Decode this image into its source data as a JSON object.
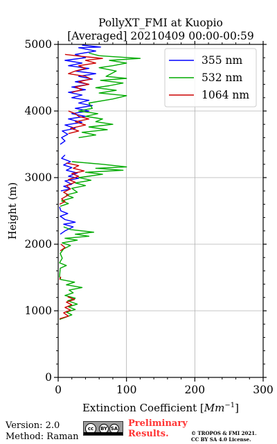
{
  "chart_data": {
    "type": "line",
    "title_line1": "PollyXT_FMI at Kuopio",
    "title_line2": "[Averaged] 20210409 00:00-00:59",
    "xlabel_text": "Extinction Coefficient [",
    "xlabel_unit": "Mm",
    "xlabel_exp": "−1",
    "xlabel_close": "]",
    "ylabel": "Height (m)",
    "xlim": [
      0,
      300
    ],
    "ylim": [
      0,
      5000
    ],
    "x_ticks": [
      "0",
      "100",
      "200",
      "300"
    ],
    "y_ticks": [
      "0",
      "1000",
      "2000",
      "3000",
      "4000",
      "5000"
    ],
    "grid": true,
    "legend_position": "top-right",
    "series": [
      {
        "name": "355 nm",
        "color": "#0000ff",
        "points": [
          [
            3,
            2150
          ],
          [
            10,
            2200
          ],
          [
            22,
            2260
          ],
          [
            8,
            2300
          ],
          [
            25,
            2330
          ],
          [
            10,
            2370
          ],
          [
            3,
            2420
          ],
          [
            14,
            2460
          ],
          [
            4,
            2500
          ],
          [
            2,
            2560
          ],
          [
            4,
            2800
          ],
          [
            18,
            2830
          ],
          [
            8,
            2870
          ],
          [
            20,
            2900
          ],
          [
            10,
            2950
          ],
          [
            30,
            2990
          ],
          [
            15,
            3020
          ],
          [
            28,
            3070
          ],
          [
            12,
            3110
          ],
          [
            20,
            3150
          ],
          [
            8,
            3190
          ],
          [
            18,
            3240
          ],
          [
            5,
            3290
          ],
          [
            10,
            3340
          ],
          [
            3,
            3500
          ],
          [
            10,
            3550
          ],
          [
            5,
            3600
          ],
          [
            14,
            3650
          ],
          [
            6,
            3700
          ],
          [
            25,
            3740
          ],
          [
            10,
            3790
          ],
          [
            35,
            3830
          ],
          [
            15,
            3880
          ],
          [
            40,
            3920
          ],
          [
            20,
            3960
          ],
          [
            45,
            4000
          ],
          [
            25,
            4040
          ],
          [
            50,
            4080
          ],
          [
            30,
            4120
          ],
          [
            45,
            4160
          ],
          [
            20,
            4200
          ],
          [
            35,
            4240
          ],
          [
            15,
            4280
          ],
          [
            40,
            4320
          ],
          [
            20,
            4360
          ],
          [
            45,
            4400
          ],
          [
            25,
            4440
          ],
          [
            50,
            4480
          ],
          [
            30,
            4520
          ],
          [
            55,
            4560
          ],
          [
            25,
            4600
          ],
          [
            45,
            4640
          ],
          [
            15,
            4680
          ],
          [
            35,
            4720
          ],
          [
            10,
            4760
          ],
          [
            40,
            4800
          ],
          [
            25,
            4850
          ],
          [
            55,
            4900
          ],
          [
            30,
            4950
          ],
          [
            62,
            4960
          ],
          [
            35,
            4990
          ]
        ]
      },
      {
        "name": "532 nm",
        "color": "#00aa00",
        "points": [
          [
            2,
            870
          ],
          [
            10,
            900
          ],
          [
            20,
            940
          ],
          [
            12,
            980
          ],
          [
            25,
            1020
          ],
          [
            15,
            1060
          ],
          [
            28,
            1100
          ],
          [
            14,
            1150
          ],
          [
            25,
            1190
          ],
          [
            10,
            1230
          ],
          [
            22,
            1270
          ],
          [
            16,
            1310
          ],
          [
            35,
            1350
          ],
          [
            12,
            1390
          ],
          [
            24,
            1430
          ],
          [
            4,
            1470
          ],
          [
            2,
            1510
          ],
          [
            3,
            1640
          ],
          [
            12,
            1680
          ],
          [
            2,
            1720
          ],
          [
            6,
            1790
          ],
          [
            3,
            1860
          ],
          [
            8,
            1930
          ],
          [
            18,
            1980
          ],
          [
            6,
            2020
          ],
          [
            28,
            2060
          ],
          [
            10,
            2090
          ],
          [
            45,
            2120
          ],
          [
            25,
            2150
          ],
          [
            52,
            2180
          ],
          [
            18,
            2220
          ],
          [
            8,
            2260
          ],
          [
            3,
            2570
          ],
          [
            15,
            2610
          ],
          [
            5,
            2650
          ],
          [
            22,
            2700
          ],
          [
            12,
            2740
          ],
          [
            28,
            2780
          ],
          [
            20,
            2840
          ],
          [
            40,
            2880
          ],
          [
            25,
            2920
          ],
          [
            48,
            2960
          ],
          [
            30,
            3000
          ],
          [
            65,
            3050
          ],
          [
            40,
            3080
          ],
          [
            95,
            3110
          ],
          [
            55,
            3140
          ],
          [
            100,
            3160
          ],
          [
            65,
            3200
          ],
          [
            20,
            3240
          ],
          [
            30,
            3600
          ],
          [
            55,
            3640
          ],
          [
            35,
            3680
          ],
          [
            72,
            3720
          ],
          [
            45,
            3760
          ],
          [
            80,
            3800
          ],
          [
            55,
            3840
          ],
          [
            65,
            3880
          ],
          [
            40,
            3920
          ],
          [
            58,
            3960
          ],
          [
            30,
            4000
          ],
          [
            50,
            4040
          ],
          [
            45,
            4120
          ],
          [
            80,
            4180
          ],
          [
            100,
            4230
          ],
          [
            60,
            4270
          ],
          [
            85,
            4310
          ],
          [
            55,
            4350
          ],
          [
            75,
            4380
          ],
          [
            95,
            4420
          ],
          [
            62,
            4460
          ],
          [
            100,
            4490
          ],
          [
            70,
            4520
          ],
          [
            85,
            4600
          ],
          [
            60,
            4650
          ],
          [
            80,
            4680
          ],
          [
            100,
            4720
          ],
          [
            75,
            4760
          ],
          [
            120,
            4790
          ],
          [
            60,
            4830
          ],
          [
            45,
            4870
          ]
        ]
      },
      {
        "name": "1064 nm",
        "color": "#cc0000",
        "points": [
          [
            2,
            880
          ],
          [
            15,
            920
          ],
          [
            8,
            970
          ],
          [
            18,
            1010
          ],
          [
            10,
            1050
          ],
          [
            20,
            1090
          ],
          [
            12,
            1130
          ],
          [
            24,
            1170
          ],
          [
            14,
            1210
          ],
          [
            2,
            1470
          ],
          [
            4,
            1510
          ],
          [
            2,
            1690
          ],
          [
            3,
            1900
          ],
          [
            10,
            1950
          ],
          [
            4,
            2000
          ],
          [
            2,
            2600
          ],
          [
            10,
            2640
          ],
          [
            5,
            2680
          ],
          [
            15,
            2740
          ],
          [
            8,
            2780
          ],
          [
            18,
            2830
          ],
          [
            12,
            2880
          ],
          [
            25,
            2930
          ],
          [
            15,
            2970
          ],
          [
            30,
            3020
          ],
          [
            20,
            3060
          ],
          [
            38,
            3100
          ],
          [
            22,
            3140
          ],
          [
            30,
            3180
          ],
          [
            12,
            3220
          ],
          [
            15,
            3660
          ],
          [
            30,
            3700
          ],
          [
            18,
            3740
          ],
          [
            40,
            3790
          ],
          [
            25,
            3840
          ],
          [
            45,
            3880
          ],
          [
            30,
            3920
          ],
          [
            25,
            3960
          ],
          [
            15,
            4000
          ],
          [
            20,
            4280
          ],
          [
            35,
            4320
          ],
          [
            25,
            4360
          ],
          [
            45,
            4400
          ],
          [
            30,
            4440
          ],
          [
            48,
            4480
          ],
          [
            40,
            4520
          ],
          [
            15,
            4560
          ],
          [
            25,
            4600
          ],
          [
            40,
            4640
          ],
          [
            30,
            4680
          ],
          [
            55,
            4720
          ],
          [
            40,
            4760
          ],
          [
            65,
            4790
          ],
          [
            35,
            4820
          ],
          [
            10,
            4850
          ]
        ]
      }
    ]
  },
  "footer": {
    "version": "Version: 2.0",
    "method": "Method: Raman",
    "license_badge": {
      "cc": "cc",
      "by": "BY",
      "sa": "SA"
    },
    "preliminary_line1": "Preliminary",
    "preliminary_line2": "Results.",
    "copyright_line1": "© TROPOS & FMI 2021.",
    "copyright_line2": "CC BY SA 4.0 License."
  }
}
